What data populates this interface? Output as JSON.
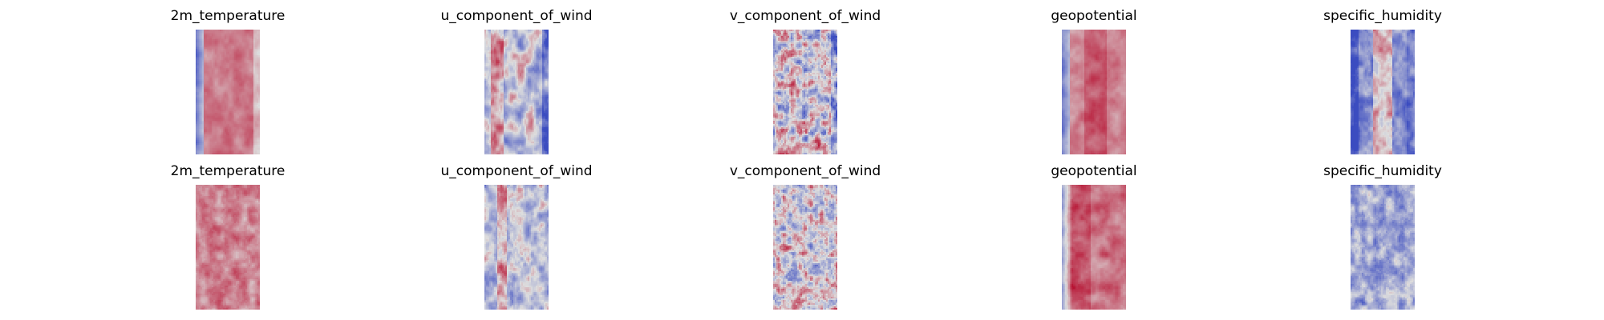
{
  "chart_data": {
    "type": "heatmap",
    "colormap": "coolwarm",
    "colormap_colors": {
      "cold": "#3b4cc0",
      "neutral": "#dddddd",
      "warm": "#b40426"
    },
    "grid": false,
    "axes_visible": false,
    "rows": [
      {
        "panels": [
          {
            "title": "2m_temperature",
            "field": "temperature"
          },
          {
            "title": "u_component_of_wind",
            "field": "u_wind"
          },
          {
            "title": "v_component_of_wind",
            "field": "v_wind"
          },
          {
            "title": "geopotential",
            "field": "geopotential"
          },
          {
            "title": "specific_humidity",
            "field": "humidity"
          }
        ]
      },
      {
        "panels": [
          {
            "title": "2m_temperature",
            "field": "temperature_alt"
          },
          {
            "title": "u_component_of_wind",
            "field": "u_wind_alt"
          },
          {
            "title": "v_component_of_wind",
            "field": "v_wind_alt"
          },
          {
            "title": "geopotential",
            "field": "geopotential_alt"
          },
          {
            "title": "specific_humidity",
            "field": "humidity_alt"
          }
        ]
      }
    ]
  }
}
